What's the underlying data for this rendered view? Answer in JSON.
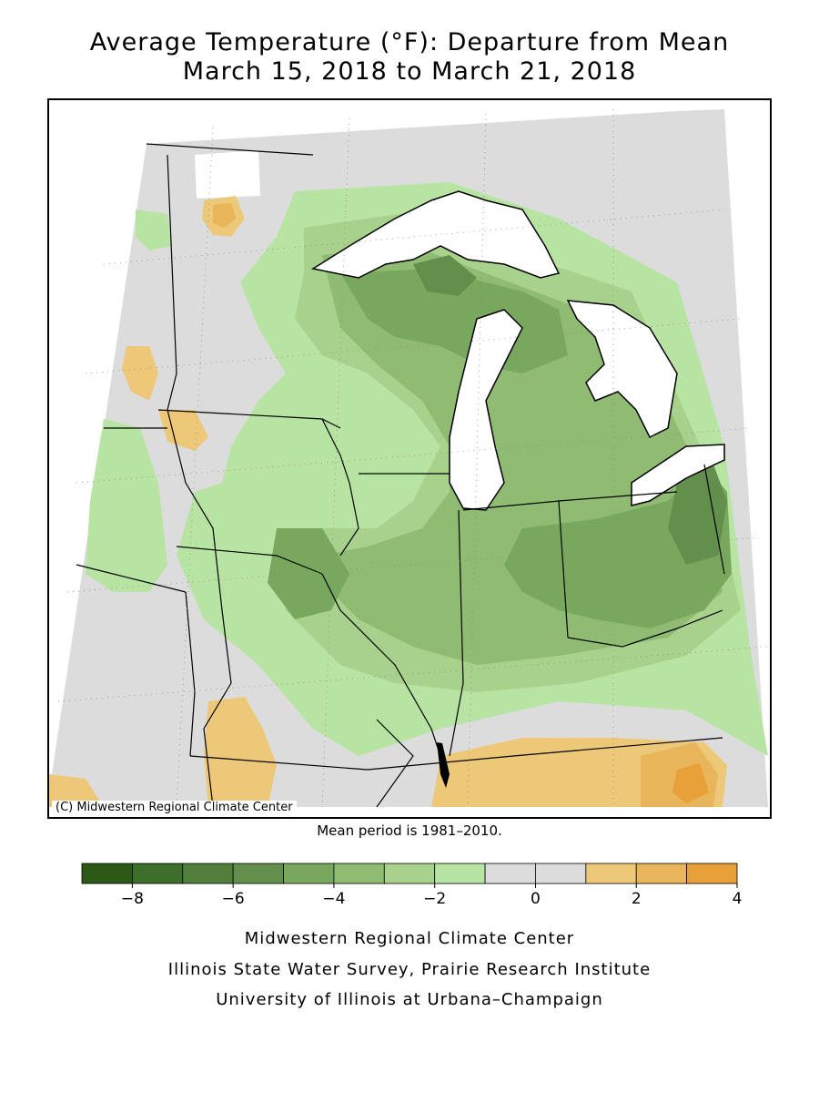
{
  "header": {
    "title_line1": "Average Temperature (°F): Departure from Mean",
    "title_line2": "March 15, 2018 to March 21, 2018"
  },
  "map": {
    "copyright": "(C) Midwestern Regional Climate Center",
    "mean_period_note": "Mean period is 1981–2010.",
    "region": "Upper Midwest / Great Lakes",
    "anomaly_pattern": {
      "strongest_cold_area": "Ohio / Lower Michigan Upper Peninsula margins (-4 to -5°F)",
      "warm_area": "Kentucky / Tennessee border (+1 to +3°F)"
    }
  },
  "legend": {
    "tick_labels": [
      "−8",
      "−6",
      "−4",
      "−2",
      "0",
      "2",
      "4"
    ],
    "colors": [
      "#2a5a16",
      "#3c6e2a",
      "#507f3c",
      "#62904c",
      "#77a85e",
      "#8fbb72",
      "#a8d28c",
      "#b7e4a2",
      "#dcdcdc",
      "#dcdcdc",
      "#ecc878",
      "#e8b55a",
      "#e8a038"
    ]
  },
  "footer": {
    "line1": "Midwestern Regional Climate Center",
    "line2": "Illinois State Water Survey, Prairie Research Institute",
    "line3": "University of Illinois at Urbana–Champaign"
  }
}
